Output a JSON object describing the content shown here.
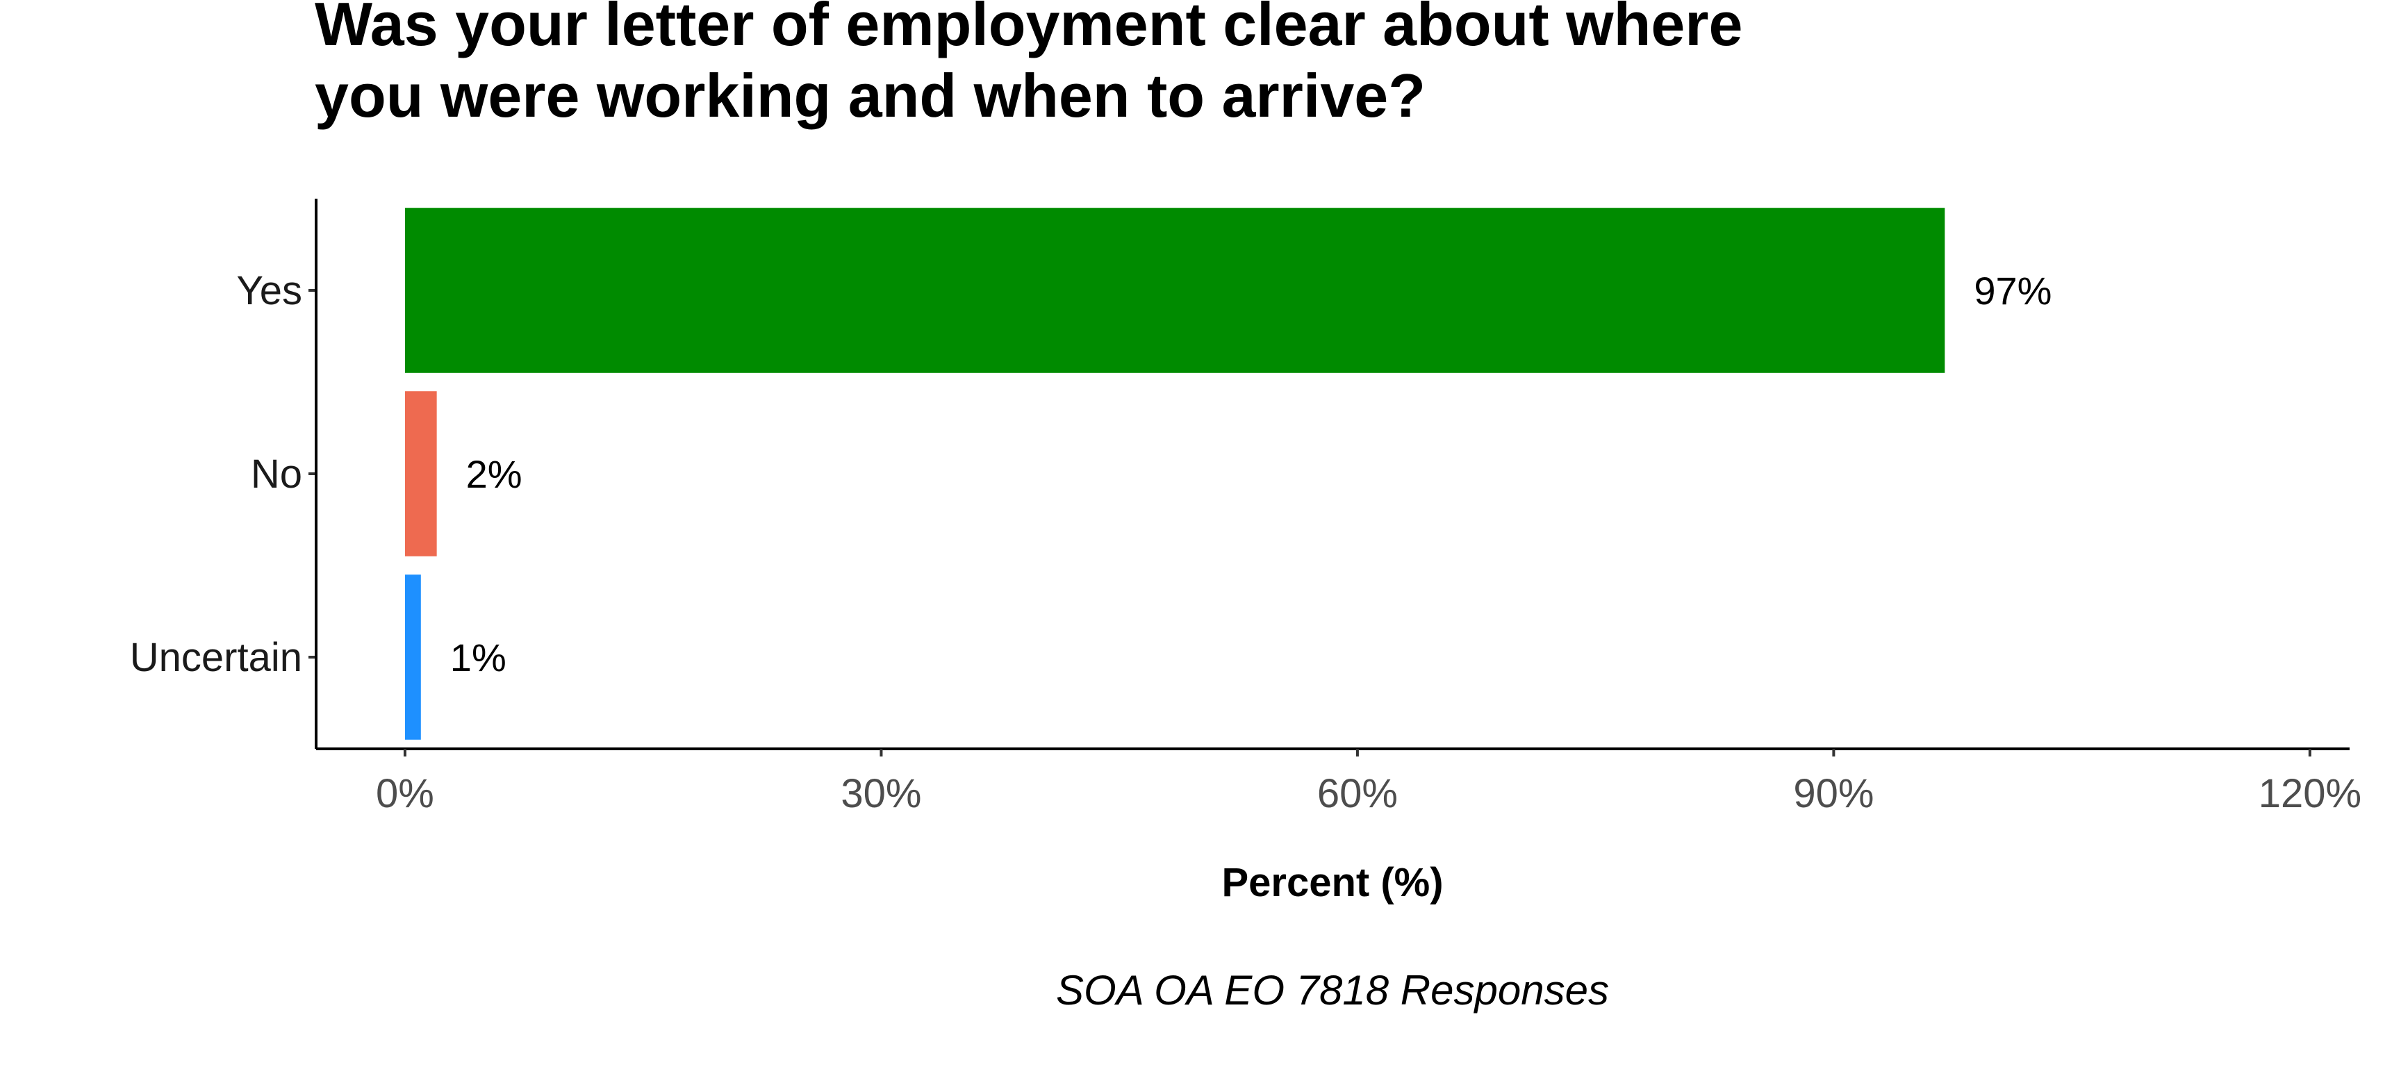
{
  "chart_data": {
    "type": "bar",
    "orientation": "horizontal",
    "title": [
      "Was your letter of employment clear about where",
      "you were working and when to arrive?"
    ],
    "xlabel": "Percent (%)",
    "ylabel": "",
    "caption": "SOA OA EO 7818 Responses",
    "categories": [
      "Yes",
      "No",
      "Uncertain"
    ],
    "values": [
      97,
      2,
      1
    ],
    "data_labels": [
      "97%",
      "2%",
      "1%"
    ],
    "colors": [
      "#008B00",
      "#EE6A50",
      "#1E90FF"
    ],
    "xlim": [
      -5.6,
      122.5
    ],
    "x_ticks": [
      0,
      30,
      60,
      90,
      120
    ],
    "x_tick_labels": [
      "0%",
      "30%",
      "60%",
      "90%",
      "120%"
    ],
    "grid": false,
    "legend": "none"
  }
}
